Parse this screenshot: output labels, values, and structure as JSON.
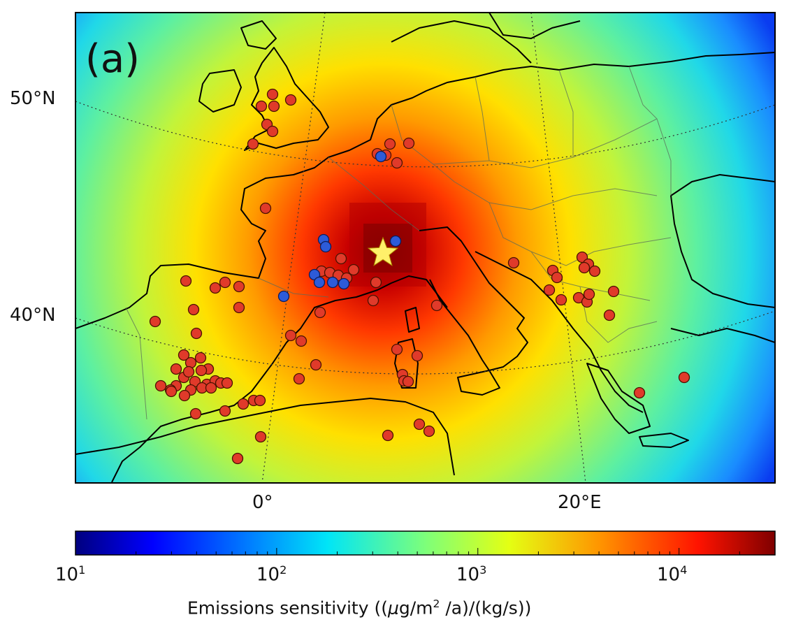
{
  "panel_label": "(a)",
  "lat_labels": [
    {
      "id": "lat-50",
      "text": "50°N"
    },
    {
      "id": "lat-40",
      "text": "40°N"
    }
  ],
  "lon_labels": [
    {
      "id": "lon-0",
      "text": "0°"
    },
    {
      "id": "lon-20",
      "text": "20°E"
    }
  ],
  "colorbar": {
    "title_prefix": "Emissions sensitivity ((",
    "title_mu": "μ",
    "title_mid": "g/m",
    "title_sup": "2",
    "title_suffix": " /a)/(kg/s))",
    "tick_base": "10",
    "tick_exponents": [
      "1",
      "2",
      "3",
      "4"
    ],
    "scale": "log",
    "range": [
      10,
      30000
    ],
    "colormap": "jet"
  },
  "colors": {
    "site_red": "#e03a2a",
    "site_blue": "#2d5bd8",
    "star": "#fff06a"
  },
  "markers": {
    "release_point": {
      "type": "star",
      "icon": "star-icon"
    },
    "red_site_count": 88,
    "blue_site_count": 9
  }
}
